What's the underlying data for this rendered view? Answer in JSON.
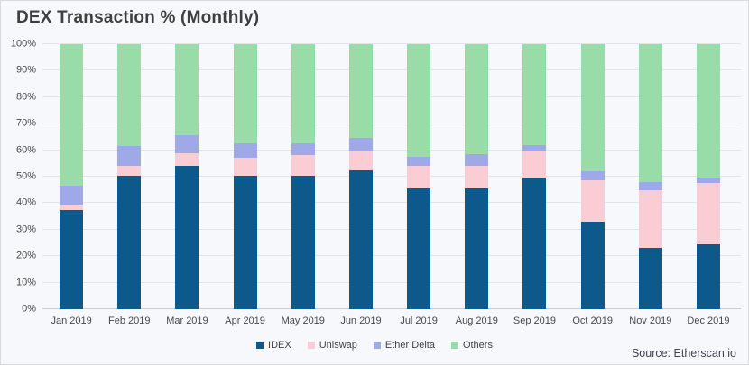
{
  "chart": {
    "title": "DEX Transaction % (Monthly)",
    "source": "Source: Etherscan.io"
  },
  "chart_data": {
    "type": "bar",
    "subtype": "stacked-percent-column",
    "title": "DEX Transaction % (Monthly)",
    "xlabel": "",
    "ylabel": "",
    "ylim": [
      0,
      100
    ],
    "grid": true,
    "legend_position": "bottom-center",
    "y_ticks": [
      "0%",
      "10%",
      "20%",
      "30%",
      "40%",
      "50%",
      "60%",
      "70%",
      "80%",
      "90%",
      "100%"
    ],
    "categories": [
      "Jan 2019",
      "Feb 2019",
      "Mar 2019",
      "Apr 2019",
      "May 2019",
      "Jun 2019",
      "Jul 2019",
      "Aug 2019",
      "Sep 2019",
      "Oct 2019",
      "Nov 2019",
      "Dec 2019"
    ],
    "series": [
      {
        "name": "IDEX",
        "color": "#0e598c",
        "values": [
          37.5,
          50.5,
          54,
          50.5,
          50.5,
          52.5,
          45.5,
          45.5,
          49.5,
          33,
          23,
          24.5
        ]
      },
      {
        "name": "Uniswap",
        "color": "#facdd4",
        "values": [
          1.5,
          3.5,
          5,
          6.5,
          7.5,
          7.5,
          8.5,
          8.5,
          10,
          15.5,
          22,
          23
        ]
      },
      {
        "name": "Ether Delta",
        "color": "#a0a9e8",
        "values": [
          7.5,
          7.5,
          6.5,
          5.5,
          4.5,
          4.5,
          3.5,
          4.5,
          2.5,
          3.5,
          3,
          2
        ]
      },
      {
        "name": "Others",
        "color": "#99dca8",
        "values": [
          53.5,
          38.5,
          34.5,
          37.5,
          37.5,
          35.5,
          42.5,
          41.5,
          38,
          48,
          52,
          50.5
        ]
      }
    ]
  }
}
